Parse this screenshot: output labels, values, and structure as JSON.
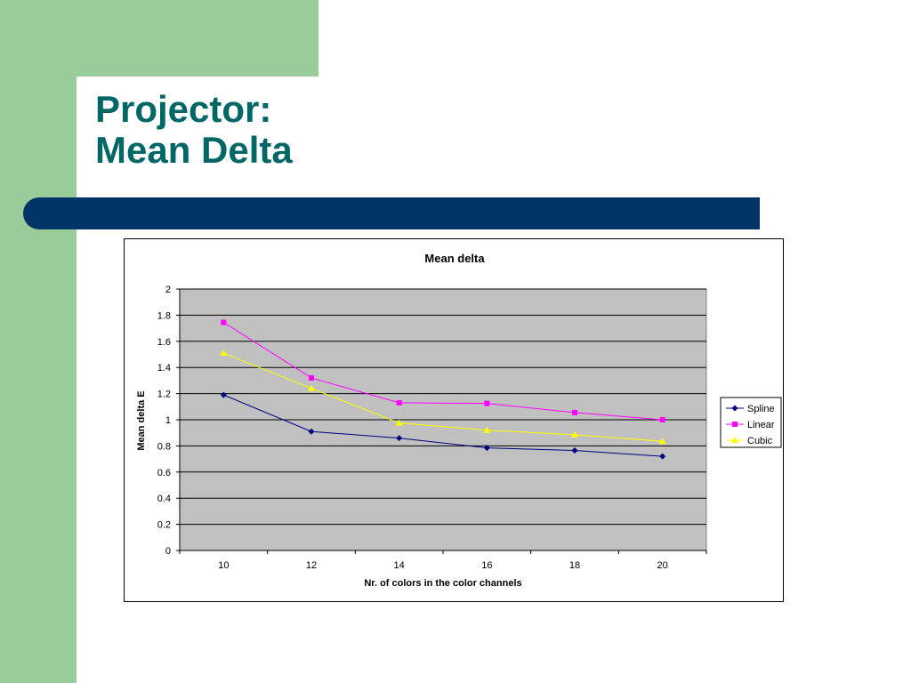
{
  "slide": {
    "title_line1": "Projector:",
    "title_line2": "Mean Delta"
  },
  "colors": {
    "side_green": "#99cc99",
    "title_teal": "#006666",
    "bar_navy": "#003366",
    "plot_bg": "#c0c0c0"
  },
  "chart_data": {
    "type": "line",
    "title": "Mean delta",
    "xlabel": "Nr. of colors in the color channels",
    "ylabel": "Mean delta E",
    "categories": [
      "10",
      "12",
      "14",
      "16",
      "18",
      "20"
    ],
    "ylim": [
      0,
      2
    ],
    "yticks": [
      "0",
      "0.2",
      "0.4",
      "0.6",
      "0.8",
      "1",
      "1.2",
      "1.4",
      "1.6",
      "1.8",
      "2"
    ],
    "grid": true,
    "legend_position": "right",
    "series": [
      {
        "name": "Spline",
        "color": "#000080",
        "marker": "diamond",
        "values": [
          1.19,
          0.91,
          0.86,
          0.785,
          0.765,
          0.72
        ]
      },
      {
        "name": "Linear",
        "color": "#ff00ff",
        "marker": "square",
        "values": [
          1.745,
          1.32,
          1.13,
          1.125,
          1.055,
          1.0
        ]
      },
      {
        "name": "Cubic",
        "color": "#ffff00",
        "marker": "triangle",
        "values": [
          1.51,
          1.24,
          0.975,
          0.92,
          0.885,
          0.835
        ]
      }
    ]
  }
}
